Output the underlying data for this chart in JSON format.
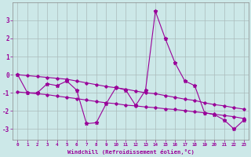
{
  "xlabel": "Windchill (Refroidissement éolien,°C)",
  "x": [
    0,
    1,
    2,
    3,
    4,
    5,
    6,
    7,
    8,
    9,
    10,
    11,
    12,
    13,
    14,
    15,
    16,
    17,
    18,
    19,
    20,
    21,
    22,
    23
  ],
  "y_main": [
    0.0,
    -1.0,
    -1.0,
    -0.5,
    -0.6,
    -0.35,
    -0.85,
    -2.7,
    -2.65,
    -1.6,
    -0.7,
    -0.85,
    -1.7,
    -0.85,
    3.5,
    2.0,
    0.65,
    -0.35,
    -0.6,
    -2.1,
    -2.2,
    -2.5,
    -3.0,
    -2.5
  ],
  "y_reg1": [
    0.0,
    -0.05,
    -0.1,
    -0.15,
    -0.2,
    -0.25,
    -0.35,
    -0.45,
    -0.55,
    -0.65,
    -0.72,
    -0.8,
    -0.9,
    -1.0,
    -1.05,
    -1.15,
    -1.25,
    -1.35,
    -1.42,
    -1.55,
    -1.65,
    -1.72,
    -1.82,
    -1.9
  ],
  "y_reg2": [
    -0.95,
    -1.0,
    -1.05,
    -1.1,
    -1.18,
    -1.25,
    -1.32,
    -1.4,
    -1.48,
    -1.55,
    -1.6,
    -1.68,
    -1.72,
    -1.78,
    -1.82,
    -1.88,
    -1.92,
    -1.98,
    -2.05,
    -2.1,
    -2.18,
    -2.25,
    -2.32,
    -2.42
  ],
  "line_color": "#990099",
  "bg_color": "#cce8e8",
  "grid_color": "#aabbbb",
  "ylim": [
    -3.6,
    4.0
  ],
  "xlim": [
    -0.5,
    23.5
  ],
  "yticks": [
    -3,
    -2,
    -1,
    0,
    1,
    2,
    3
  ],
  "xticks": [
    0,
    1,
    2,
    3,
    4,
    5,
    6,
    7,
    8,
    9,
    10,
    11,
    12,
    13,
    14,
    15,
    16,
    17,
    18,
    19,
    20,
    21,
    22,
    23
  ]
}
